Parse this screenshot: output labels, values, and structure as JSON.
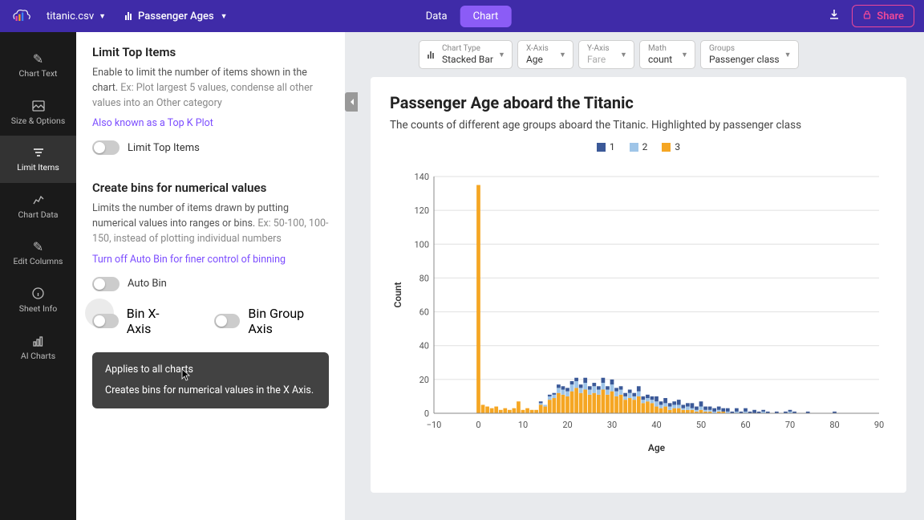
{
  "topbar": {
    "file": "titanic.csv",
    "chart_name": "Passenger Ages",
    "data_tab": "Data",
    "chart_tab": "Chart",
    "share": "Share"
  },
  "sidebar": {
    "items": [
      {
        "label": "Chart Text"
      },
      {
        "label": "Size & Options"
      },
      {
        "label": "Limit Items"
      },
      {
        "label": "Chart Data"
      },
      {
        "label": "Edit Columns"
      },
      {
        "label": "Sheet Info"
      },
      {
        "label": "AI Charts"
      }
    ]
  },
  "panel": {
    "s1": {
      "title": "Limit Top Items",
      "desc": "Enable to limit the number of items shown in the chart.",
      "ex": "Ex: Plot largest 5 values, condense all other values into an Other category",
      "link": "Also known as a Top K Plot",
      "toggle_label": "Limit Top Items"
    },
    "s2": {
      "title": "Create bins for numerical values",
      "desc": "Limits the number of items drawn by putting numerical values into ranges or bins.",
      "ex": "Ex: 50-100, 100-150, instead of plotting individual numbers",
      "link": "Turn off Auto Bin for finer control of binning",
      "autobin": "Auto Bin",
      "binx": "Bin X-Axis",
      "bingroup": "Bin Group Axis"
    },
    "tooltip": {
      "l1": "Applies to all charts",
      "l2": "Creates bins for numerical values in the X Axis."
    }
  },
  "config": [
    {
      "label": "Chart Type",
      "value": "Stacked Bar",
      "icon": true
    },
    {
      "label": "X-Axis",
      "value": "Age"
    },
    {
      "label": "Y-Axis",
      "value": "Fare",
      "gray": true
    },
    {
      "label": "Math",
      "value": "count"
    },
    {
      "label": "Groups",
      "value": "Passenger class"
    }
  ],
  "chart": {
    "title": "Passenger Age aboard the Titanic",
    "subtitle": "The counts of different age groups aboard the Titanic. Highlighted by passenger class",
    "legend": [
      {
        "label": "1",
        "color": "#3b5998"
      },
      {
        "label": "2",
        "color": "#9fc5e8"
      },
      {
        "label": "3",
        "color": "#f5a623"
      }
    ],
    "ylabel": "Count",
    "xlabel": "Age",
    "ylim": [
      0,
      140
    ],
    "ytick_step": 20,
    "xlim": [
      -10,
      90
    ],
    "xtick_step": 10,
    "colors": {
      "c1": "#3b5998",
      "c2": "#9fc5e8",
      "c3": "#f5a623",
      "grid": "#e0e0e0",
      "axis": "#888"
    },
    "bars": [
      {
        "x": 0,
        "v": [
          0,
          0,
          135
        ]
      },
      {
        "x": 1,
        "v": [
          0,
          0,
          5
        ]
      },
      {
        "x": 2,
        "v": [
          0,
          0,
          4
        ]
      },
      {
        "x": 3,
        "v": [
          0,
          0,
          3
        ]
      },
      {
        "x": 4,
        "v": [
          0,
          0,
          4
        ]
      },
      {
        "x": 5,
        "v": [
          0,
          0,
          2
        ]
      },
      {
        "x": 6,
        "v": [
          0,
          0,
          3
        ]
      },
      {
        "x": 7,
        "v": [
          0,
          0,
          2
        ]
      },
      {
        "x": 8,
        "v": [
          0,
          0,
          3
        ]
      },
      {
        "x": 9,
        "v": [
          0,
          0,
          7
        ]
      },
      {
        "x": 10,
        "v": [
          0,
          0,
          2
        ]
      },
      {
        "x": 11,
        "v": [
          0,
          0,
          3
        ]
      },
      {
        "x": 12,
        "v": [
          0,
          0,
          2
        ]
      },
      {
        "x": 13,
        "v": [
          0,
          0,
          2
        ]
      },
      {
        "x": 14,
        "v": [
          1,
          1,
          5
        ]
      },
      {
        "x": 15,
        "v": [
          0,
          1,
          4
        ]
      },
      {
        "x": 16,
        "v": [
          1,
          2,
          8
        ]
      },
      {
        "x": 17,
        "v": [
          1,
          2,
          9
        ]
      },
      {
        "x": 18,
        "v": [
          2,
          3,
          12
        ]
      },
      {
        "x": 19,
        "v": [
          2,
          3,
          11
        ]
      },
      {
        "x": 20,
        "v": [
          2,
          3,
          10
        ]
      },
      {
        "x": 21,
        "v": [
          2,
          4,
          13
        ]
      },
      {
        "x": 22,
        "v": [
          2,
          4,
          15
        ]
      },
      {
        "x": 23,
        "v": [
          2,
          3,
          12
        ]
      },
      {
        "x": 24,
        "v": [
          3,
          4,
          14
        ]
      },
      {
        "x": 25,
        "v": [
          2,
          3,
          11
        ]
      },
      {
        "x": 26,
        "v": [
          2,
          4,
          12
        ]
      },
      {
        "x": 27,
        "v": [
          2,
          3,
          11
        ]
      },
      {
        "x": 28,
        "v": [
          3,
          4,
          14
        ]
      },
      {
        "x": 29,
        "v": [
          2,
          3,
          11
        ]
      },
      {
        "x": 30,
        "v": [
          3,
          4,
          13
        ]
      },
      {
        "x": 31,
        "v": [
          2,
          3,
          10
        ]
      },
      {
        "x": 32,
        "v": [
          2,
          3,
          11
        ]
      },
      {
        "x": 33,
        "v": [
          2,
          2,
          8
        ]
      },
      {
        "x": 34,
        "v": [
          2,
          3,
          9
        ]
      },
      {
        "x": 35,
        "v": [
          2,
          2,
          8
        ]
      },
      {
        "x": 36,
        "v": [
          3,
          3,
          10
        ]
      },
      {
        "x": 37,
        "v": [
          2,
          2,
          6
        ]
      },
      {
        "x": 38,
        "v": [
          2,
          2,
          7
        ]
      },
      {
        "x": 39,
        "v": [
          2,
          2,
          6
        ]
      },
      {
        "x": 40,
        "v": [
          3,
          3,
          4
        ]
      },
      {
        "x": 41,
        "v": [
          2,
          2,
          3
        ]
      },
      {
        "x": 42,
        "v": [
          3,
          2,
          4
        ]
      },
      {
        "x": 43,
        "v": [
          2,
          2,
          2
        ]
      },
      {
        "x": 44,
        "v": [
          2,
          2,
          3
        ]
      },
      {
        "x": 45,
        "v": [
          3,
          2,
          3
        ]
      },
      {
        "x": 46,
        "v": [
          2,
          1,
          2
        ]
      },
      {
        "x": 47,
        "v": [
          2,
          2,
          2
        ]
      },
      {
        "x": 48,
        "v": [
          3,
          1,
          2
        ]
      },
      {
        "x": 49,
        "v": [
          2,
          1,
          1
        ]
      },
      {
        "x": 50,
        "v": [
          3,
          2,
          2
        ]
      },
      {
        "x": 51,
        "v": [
          2,
          1,
          1
        ]
      },
      {
        "x": 52,
        "v": [
          2,
          1,
          1
        ]
      },
      {
        "x": 53,
        "v": [
          2,
          1,
          0
        ]
      },
      {
        "x": 54,
        "v": [
          2,
          1,
          1
        ]
      },
      {
        "x": 55,
        "v": [
          2,
          0,
          1
        ]
      },
      {
        "x": 56,
        "v": [
          2,
          1,
          0
        ]
      },
      {
        "x": 57,
        "v": [
          1,
          0,
          0
        ]
      },
      {
        "x": 58,
        "v": [
          2,
          1,
          0
        ]
      },
      {
        "x": 59,
        "v": [
          1,
          0,
          0
        ]
      },
      {
        "x": 60,
        "v": [
          2,
          1,
          0
        ]
      },
      {
        "x": 61,
        "v": [
          1,
          0,
          0
        ]
      },
      {
        "x": 62,
        "v": [
          2,
          0,
          0
        ]
      },
      {
        "x": 63,
        "v": [
          1,
          0,
          0
        ]
      },
      {
        "x": 64,
        "v": [
          1,
          1,
          0
        ]
      },
      {
        "x": 65,
        "v": [
          1,
          0,
          0
        ]
      },
      {
        "x": 66,
        "v": [
          0,
          0,
          0
        ]
      },
      {
        "x": 67,
        "v": [
          1,
          0,
          0
        ]
      },
      {
        "x": 68,
        "v": [
          0,
          0,
          0
        ]
      },
      {
        "x": 69,
        "v": [
          1,
          0,
          0
        ]
      },
      {
        "x": 70,
        "v": [
          1,
          1,
          0
        ]
      },
      {
        "x": 71,
        "v": [
          1,
          0,
          0
        ]
      },
      {
        "x": 72,
        "v": [
          0,
          0,
          0
        ]
      },
      {
        "x": 73,
        "v": [
          0,
          0,
          0
        ]
      },
      {
        "x": 74,
        "v": [
          1,
          0,
          0
        ]
      },
      {
        "x": 76,
        "v": [
          0,
          0,
          0
        ]
      },
      {
        "x": 80,
        "v": [
          1,
          0,
          0
        ]
      }
    ]
  }
}
